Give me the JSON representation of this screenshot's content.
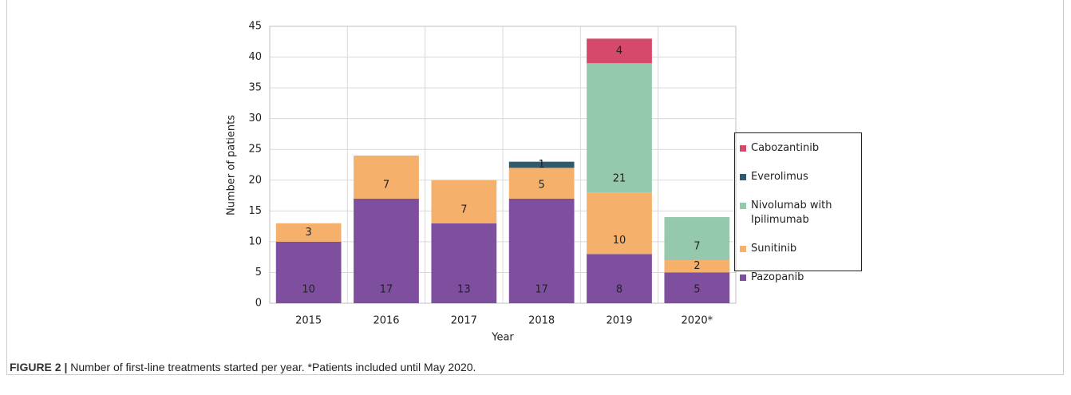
{
  "chart_data": {
    "type": "stacked-bar",
    "x_label": "Year",
    "y_label": "Number of patients",
    "categories": [
      "2015",
      "2016",
      "2017",
      "2018",
      "2019",
      "2020*"
    ],
    "series": [
      {
        "name": "Pazopanib",
        "color": "#7e4f9e",
        "values": [
          10,
          17,
          13,
          17,
          8,
          5
        ]
      },
      {
        "name": "Sunitinib",
        "color": "#f5b06c",
        "values": [
          3,
          7,
          7,
          5,
          10,
          2
        ]
      },
      {
        "name": "Nivolumab with Ipilimumab",
        "color": "#94c9ae",
        "values": [
          null,
          null,
          null,
          null,
          21,
          7
        ]
      },
      {
        "name": "Everolimus",
        "color": "#2f5a6d",
        "values": [
          null,
          null,
          null,
          1,
          null,
          null
        ]
      },
      {
        "name": "Cabozantinib",
        "color": "#d5496b",
        "values": [
          null,
          null,
          null,
          null,
          4,
          null
        ]
      }
    ],
    "ylim": [
      0,
      45
    ],
    "yticks": [
      0,
      5,
      10,
      15,
      20,
      25,
      30,
      35,
      40,
      45
    ],
    "grid": true
  },
  "caption": {
    "label": "FIGURE 2 |",
    "text": "Number of first-line treatments started per year. *Patients included until May 2020."
  }
}
